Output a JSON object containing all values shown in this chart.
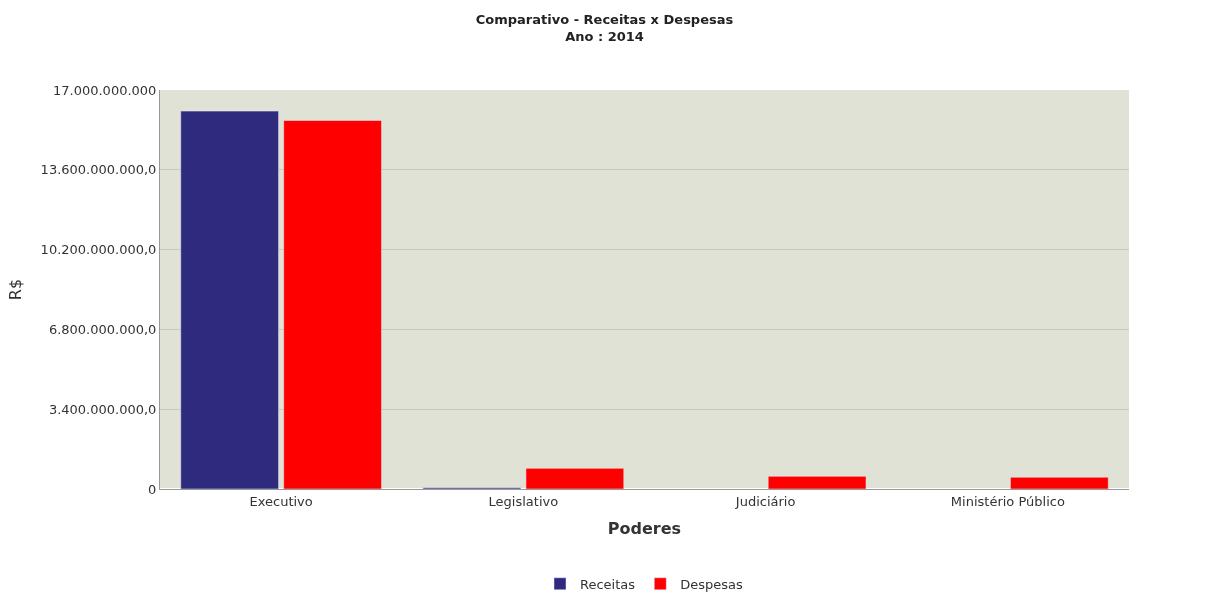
{
  "chart_data": {
    "type": "bar",
    "title": "Comparativo - Receitas x Despesas",
    "subtitle": "Ano : 2014",
    "xlabel": "Poderes",
    "ylabel": "R$",
    "categories": [
      "Executivo",
      "Legislativo",
      "Judiciário",
      "Ministério Público"
    ],
    "series": [
      {
        "name": "Receitas",
        "color": "#2e2a7e",
        "values": [
          16100000000,
          50000000,
          null,
          null
        ]
      },
      {
        "name": "Despesas",
        "color": "#ff0000",
        "values": [
          15700000000,
          880000000,
          540000000,
          500000000
        ]
      }
    ],
    "ylim": [
      0,
      17000000000
    ],
    "yticks": [
      0,
      {
        "value": 3400000000,
        "label": "3.400.000.000,0"
      },
      {
        "value": 6800000000,
        "label": "6.800.000.000,0"
      },
      {
        "value": 10200000000,
        "label": "10.200.000.000,0"
      },
      {
        "value": 13600000000,
        "label": "13.600.000.000,0"
      },
      {
        "value": 17000000000,
        "label": "17.000.000.000"
      }
    ],
    "grid": "y",
    "legend": "bottom"
  }
}
